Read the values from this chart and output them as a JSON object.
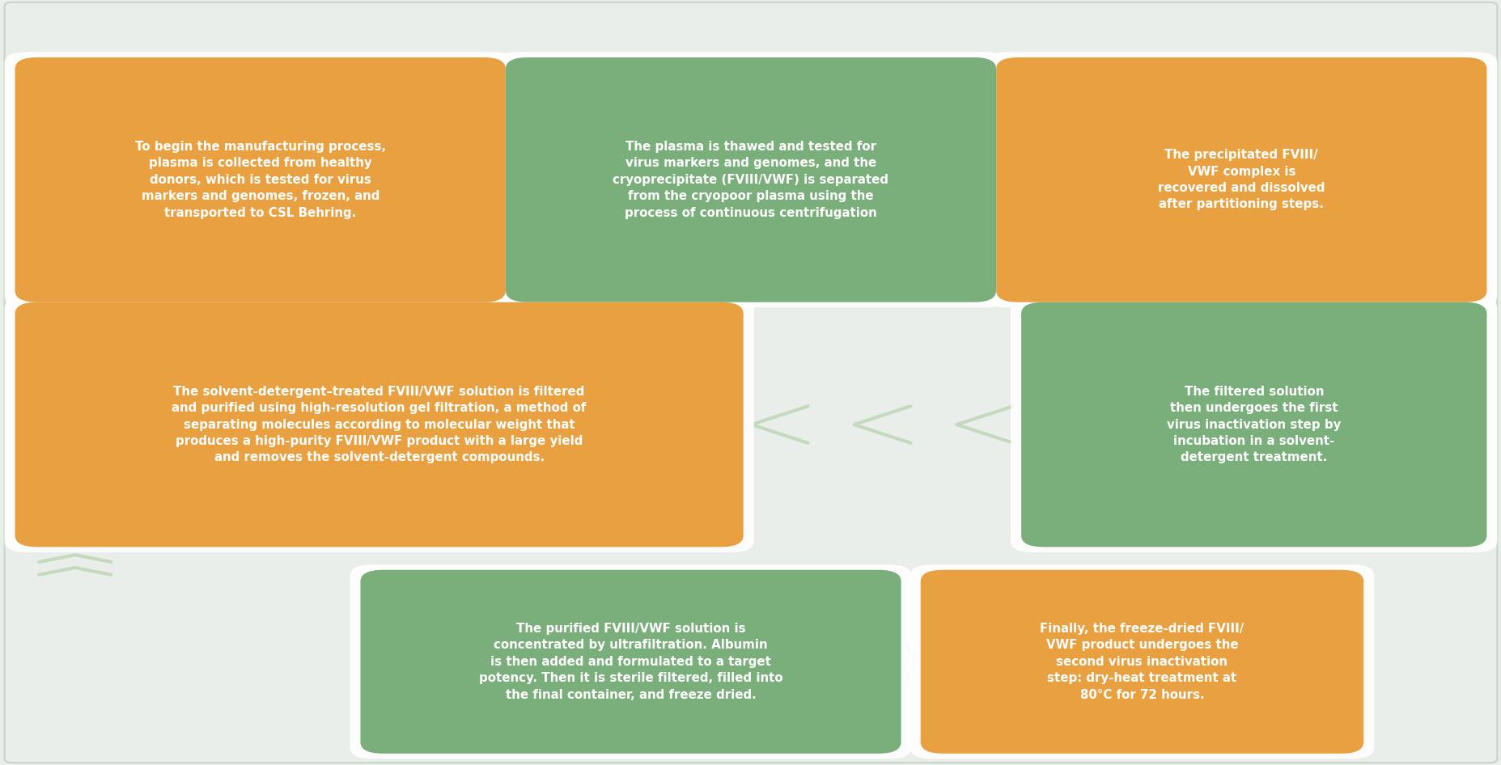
{
  "background_color": "#eaeeea",
  "orange_color": "#E8A040",
  "green_color": "#7AAE7A",
  "arrow_color": "#c5d9c0",
  "text_color": "#ffffff",
  "boxes": [
    {
      "id": 1,
      "row": 1,
      "col": 1,
      "color": "orange",
      "text": "To begin the manufacturing process,\nplasma is collected from healthy\ndonors, which is tested for virus\nmarkers and genomes, frozen, and\ntransported to CSL Behring."
    },
    {
      "id": 2,
      "row": 1,
      "col": 2,
      "color": "green",
      "text": "The plasma is thawed and tested for\nvirus markers and genomes, and the\ncryoprecipitate (FVIII/VWF) is separated\nfrom the cryopoor plasma using the\nprocess of continuous centrifugation"
    },
    {
      "id": 3,
      "row": 1,
      "col": 3,
      "color": "orange",
      "text": "The precipitated FVIII/\nVWF complex is\nrecovered and dissolved\nafter partitioning steps."
    },
    {
      "id": 4,
      "row": 2,
      "col": 1,
      "color": "orange",
      "text": "The solvent-detergent–treated FVIII/VWF solution is filtered\nand purified using high-resolution gel filtration, a method of\nseparating molecules according to molecular weight that\nproduces a high-purity FVIII/VWF product with a large yield\nand removes the solvent-detergent compounds."
    },
    {
      "id": 5,
      "row": 2,
      "col": 2,
      "color": "green",
      "text": "The filtered solution\nthen undergoes the first\nvirus inactivation step by\nincubation in a solvent-\ndetergent treatment."
    },
    {
      "id": 6,
      "row": 3,
      "col": 1,
      "color": "green",
      "text": "The purified FVIII/VWF solution is\nconcentrated by ultrafiltration. Albumin\nis then added and formulated to a target\npotency. Then it is sterile filtered, filled into\nthe final container, and freeze dried."
    },
    {
      "id": 7,
      "row": 3,
      "col": 2,
      "color": "orange",
      "text": "Finally, the freeze-dried FVIII/\nVWF product undergoes the\nsecond virus inactivation\nstep: dry-heat treatment at\n80°C for 72 hours."
    }
  ]
}
